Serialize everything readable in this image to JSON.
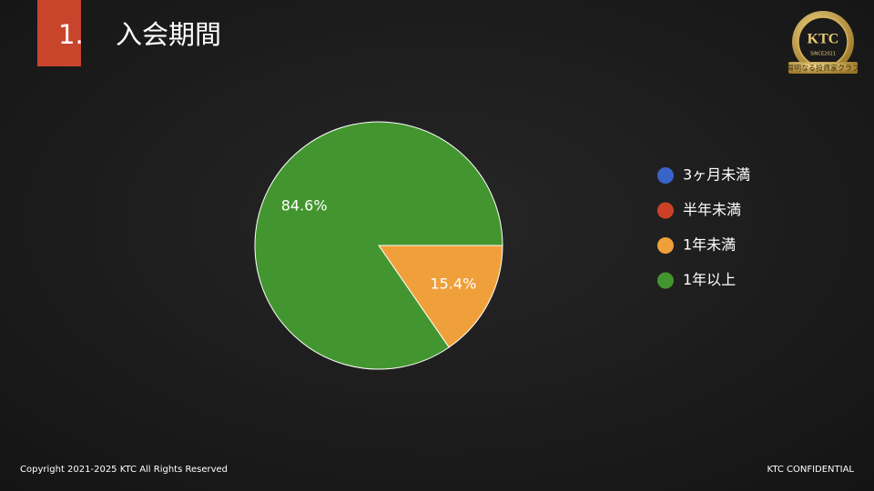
{
  "header": {
    "number": "1.",
    "title": "入会期間"
  },
  "logo": {
    "name": "KTC",
    "since": "SINCE2021",
    "tagline": "賢明なる投資家クラブ"
  },
  "chart_data": {
    "type": "pie",
    "categories": [
      "3ヶ月未満",
      "半年未満",
      "1年未満",
      "1年以上"
    ],
    "values": [
      0,
      0,
      15.4,
      84.6
    ],
    "value_labels": [
      null,
      null,
      "15.4%",
      "84.6%"
    ],
    "colors": [
      "#3a63c9",
      "#cc4125",
      "#f0a03a",
      "#43962f"
    ],
    "legend": "right"
  },
  "footer": {
    "copyright": "Copyright 2021-2025 KTC All Rights Reserved",
    "confidential": "KTC CONFIDENTIAL"
  }
}
